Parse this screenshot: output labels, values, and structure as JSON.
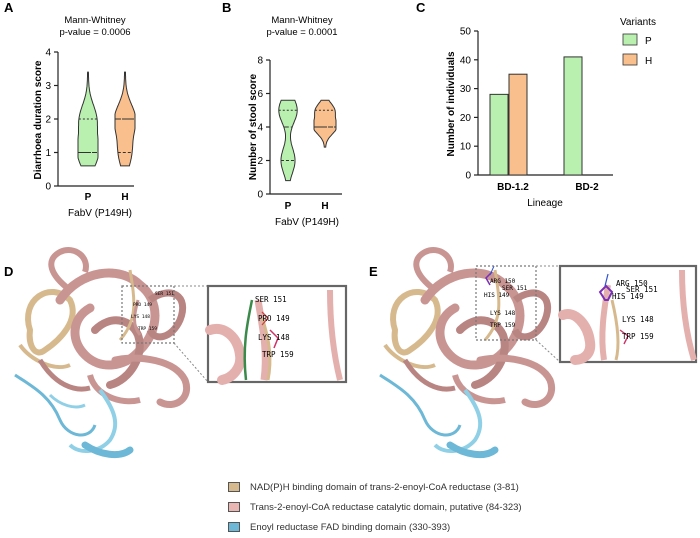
{
  "panels": {
    "A": {
      "letter": "A",
      "stat_title": "Mann-Whitney",
      "stat_p": "p-value = 0.0006",
      "ylabel": "Diarrhoea duration score",
      "xlabel": "FabV (P149H)",
      "yticks": [
        "0",
        "1",
        "2",
        "3",
        "4"
      ],
      "categories": [
        "P",
        "H"
      ]
    },
    "B": {
      "letter": "B",
      "stat_title": "Mann-Whitney",
      "stat_p": "p-value = 0.0001",
      "ylabel": "Number of stool score",
      "xlabel": "FabV (P149H)",
      "yticks": [
        "0",
        "2",
        "4",
        "6",
        "8"
      ],
      "categories": [
        "P",
        "H"
      ]
    },
    "C": {
      "letter": "C",
      "ylabel": "Number of individuals",
      "xlabel": "Lineage",
      "yticks": [
        "0",
        "10",
        "20",
        "30",
        "40",
        "50"
      ],
      "legend_title": "Variants",
      "legend_items": [
        {
          "label": "P",
          "color": "#b9f0b0"
        },
        {
          "label": "H",
          "color": "#f9c08e"
        }
      ]
    },
    "D": {
      "letter": "D",
      "residues": [
        "SER 151",
        "PRO 149",
        "LYS 148",
        "TRP 159"
      ]
    },
    "E": {
      "letter": "E",
      "residues": [
        "ARG 150",
        "SER 151",
        "HIS 149",
        "LYS 148",
        "TRP 159"
      ]
    }
  },
  "colors": {
    "P": "#b9f0b0",
    "H": "#f9c08e",
    "domain1": "#d7b98e",
    "domain2": "#e9b6b4",
    "domain3": "#6cb8d6",
    "ribbon": "#c99593"
  },
  "legend": [
    {
      "label": "NAD(P)H binding domain of trans-2-enoyl-CoA reductase (3-81)",
      "color": "#d7b98e"
    },
    {
      "label": "Trans-2-enoyl-CoA reductase catalytic domain, putative (84-323)",
      "color": "#e9b6b4"
    },
    {
      "label": "Enoyl reductase FAD binding domain (330-393)",
      "color": "#6cb8d6"
    }
  ],
  "chart_data": [
    {
      "type": "violin",
      "title": "Mann-Whitney p-value = 0.0006",
      "xlabel": "FabV (P149H)",
      "ylabel": "Diarrhoea duration score",
      "ylim": [
        0,
        4
      ],
      "categories": [
        "P",
        "H"
      ],
      "series": [
        {
          "name": "P",
          "min": 0.6,
          "q1": 1.0,
          "median": 1.0,
          "q3": 2.0,
          "max": 3.4
        },
        {
          "name": "H",
          "min": 0.6,
          "q1": 1.0,
          "median": 2.0,
          "q3": 2.0,
          "max": 3.4
        }
      ]
    },
    {
      "type": "violin",
      "title": "Mann-Whitney p-value = 0.0001",
      "xlabel": "FabV (P149H)",
      "ylabel": "Number of stool score",
      "ylim": [
        0,
        8
      ],
      "categories": [
        "P",
        "H"
      ],
      "series": [
        {
          "name": "P",
          "min": 0.8,
          "q1": 2.0,
          "median": 4.0,
          "q3": 5.0,
          "max": 5.6
        },
        {
          "name": "H",
          "min": 2.8,
          "q1": 4.0,
          "median": 4.0,
          "q3": 5.0,
          "max": 5.6
        }
      ]
    },
    {
      "type": "bar",
      "xlabel": "Lineage",
      "ylabel": "Number of individuals",
      "ylim": [
        0,
        50
      ],
      "categories": [
        "BD-1.2",
        "BD-2"
      ],
      "series": [
        {
          "name": "P",
          "values": [
            28,
            41
          ]
        },
        {
          "name": "H",
          "values": [
            35,
            0
          ]
        }
      ],
      "legend": "right"
    }
  ]
}
